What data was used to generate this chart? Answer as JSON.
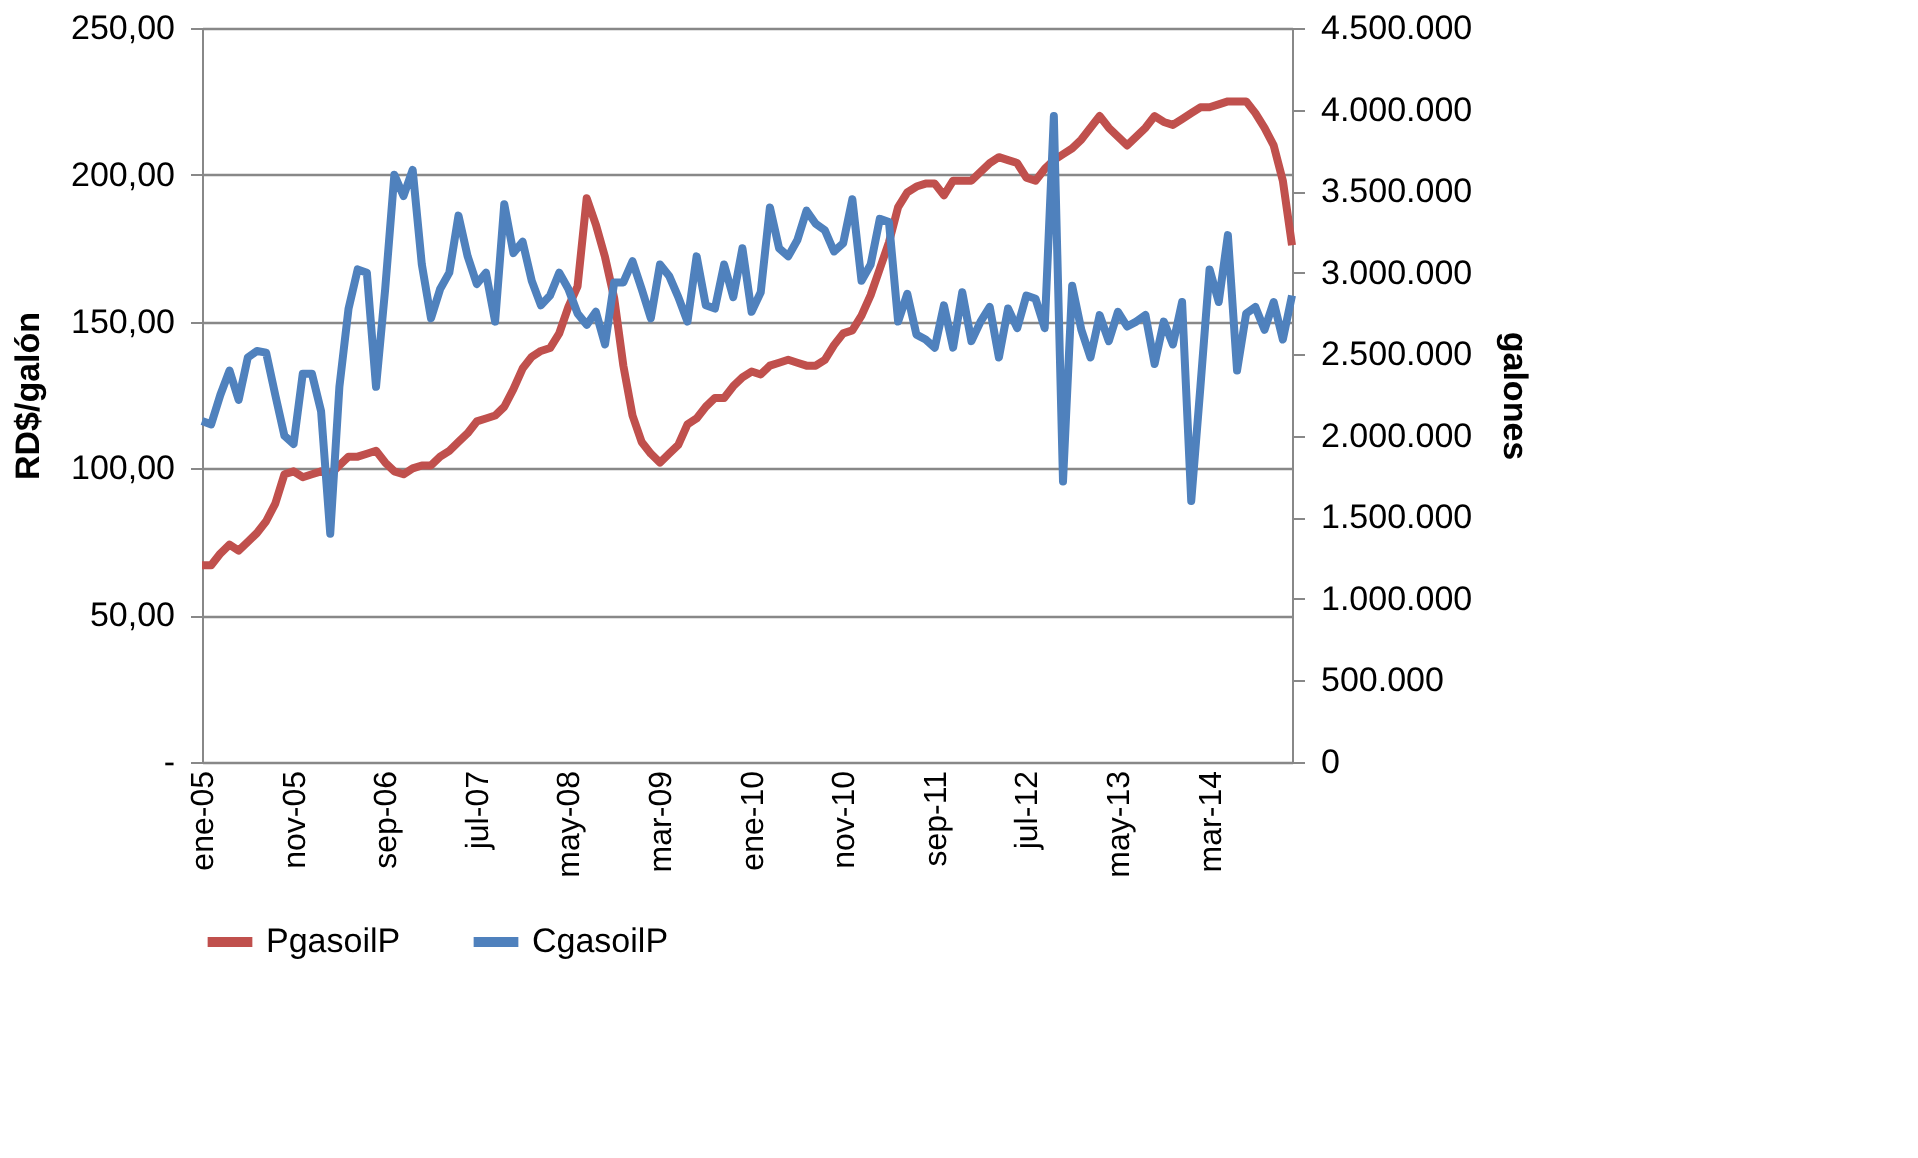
{
  "chart_data": {
    "type": "line",
    "ylabel": "RD$/galón",
    "y2label": "galones",
    "categories": [
      "ene-05",
      null,
      null,
      null,
      null,
      null,
      null,
      null,
      null,
      null,
      "nov-05",
      null,
      null,
      null,
      null,
      null,
      null,
      null,
      null,
      null,
      "sep-06",
      null,
      null,
      null,
      null,
      null,
      null,
      null,
      null,
      null,
      "jul-07",
      null,
      null,
      null,
      null,
      null,
      null,
      null,
      null,
      null,
      "may-08",
      null,
      null,
      null,
      null,
      null,
      null,
      null,
      null,
      null,
      "mar-09",
      null,
      null,
      null,
      null,
      null,
      null,
      null,
      null,
      null,
      "ene-10",
      null,
      null,
      null,
      null,
      null,
      null,
      null,
      null,
      null,
      "nov-10",
      null,
      null,
      null,
      null,
      null,
      null,
      null,
      null,
      null,
      "sep-11",
      null,
      null,
      null,
      null,
      null,
      null,
      null,
      null,
      null,
      "jul-12",
      null,
      null,
      null,
      null,
      null,
      null,
      null,
      null,
      null,
      "may-13",
      null,
      null,
      null,
      null,
      null,
      null,
      null,
      null,
      null,
      "mar-14",
      null,
      null,
      null,
      null,
      null,
      null,
      null,
      null,
      null
    ],
    "series": [
      {
        "name": "PgasoilP",
        "color": "#c0504d",
        "values": [
          67,
          67,
          71,
          74,
          72,
          75,
          78,
          82,
          88,
          98,
          99,
          97,
          98,
          99,
          98,
          101,
          104,
          104,
          105,
          106,
          102,
          99,
          98,
          100,
          101,
          101,
          104,
          106,
          109,
          112,
          116,
          117,
          118,
          121,
          127,
          134,
          138,
          140,
          141,
          146,
          155,
          162,
          192,
          183,
          172,
          158,
          135,
          118,
          109,
          105,
          102,
          105,
          108,
          115,
          117,
          121,
          124,
          124,
          128,
          131,
          133,
          132,
          135,
          136,
          137,
          136,
          135,
          135,
          137,
          142,
          146,
          147,
          152,
          159,
          168,
          177,
          189,
          194,
          196,
          197,
          197,
          193,
          198,
          198,
          198,
          201,
          204,
          206,
          205,
          204,
          199,
          198,
          202,
          205,
          207,
          209,
          212,
          216,
          220,
          216,
          213,
          210,
          213,
          216,
          220,
          218,
          217,
          219,
          221,
          223,
          223,
          224,
          225,
          225,
          225,
          221,
          216,
          210,
          198,
          176
        ]
      },
      {
        "name": "CgasoilP",
        "color": "#4f81bd",
        "axis": "y2",
        "values": [
          2090000,
          2070000,
          2250000,
          2400000,
          2220000,
          2480000,
          2520000,
          2510000,
          2250000,
          2000000,
          1950000,
          2380000,
          2380000,
          2150000,
          1400000,
          2300000,
          2780000,
          3020000,
          3000000,
          2300000,
          2900000,
          3600000,
          3470000,
          3630000,
          3050000,
          2720000,
          2900000,
          3000000,
          3350000,
          3100000,
          2930000,
          3000000,
          2700000,
          3420000,
          3120000,
          3190000,
          2950000,
          2800000,
          2860000,
          3000000,
          2900000,
          2750000,
          2680000,
          2760000,
          2560000,
          2940000,
          2940000,
          3070000,
          2900000,
          2720000,
          3050000,
          2980000,
          2850000,
          2700000,
          3100000,
          2800000,
          2780000,
          3050000,
          2850000,
          3150000,
          2760000,
          2880000,
          3400000,
          3150000,
          3100000,
          3200000,
          3380000,
          3300000,
          3260000,
          3130000,
          3180000,
          3450000,
          2950000,
          3050000,
          3330000,
          3310000,
          2700000,
          2870000,
          2620000,
          2590000,
          2540000,
          2800000,
          2540000,
          2880000,
          2580000,
          2700000,
          2790000,
          2480000,
          2780000,
          2660000,
          2860000,
          2840000,
          2660000,
          3960000,
          1720000,
          2920000,
          2650000,
          2480000,
          2740000,
          2580000,
          2760000,
          2670000,
          2700000,
          2740000,
          2440000,
          2700000,
          2560000,
          2820000,
          1600000,
          2300000,
          3020000,
          2820000,
          3230000,
          2400000,
          2750000,
          2790000,
          2650000,
          2820000,
          2590000,
          2860000
        ]
      }
    ],
    "ylim": [
      0,
      250
    ],
    "yticks": [
      {
        "value": 0,
        "label": "-"
      },
      {
        "value": 50,
        "label": "50,00"
      },
      {
        "value": 100,
        "label": "100,00"
      },
      {
        "value": 150,
        "label": "150,00"
      },
      {
        "value": 200,
        "label": "200,00"
      },
      {
        "value": 250,
        "label": "250,00"
      }
    ],
    "y2lim": [
      0,
      4500000
    ],
    "y2ticks": [
      0,
      {
        "value": 500000,
        "label": "500.000"
      },
      {
        "value": 1000000,
        "label": "1.000.000"
      },
      {
        "value": 1500000,
        "label": "1.500.000"
      },
      {
        "value": 2000000,
        "label": "2.000.000"
      },
      {
        "value": 2500000,
        "label": "2.500.000"
      },
      {
        "value": 3000000,
        "label": "3.000.000"
      },
      {
        "value": 3500000,
        "label": "3.500.000"
      },
      {
        "value": 4000000,
        "label": "4.000.000"
      },
      {
        "value": 4500000,
        "label": "4.500.000"
      }
    ],
    "grid": "y",
    "legend": "bottom",
    "line_style": "solid",
    "marker": "none"
  }
}
